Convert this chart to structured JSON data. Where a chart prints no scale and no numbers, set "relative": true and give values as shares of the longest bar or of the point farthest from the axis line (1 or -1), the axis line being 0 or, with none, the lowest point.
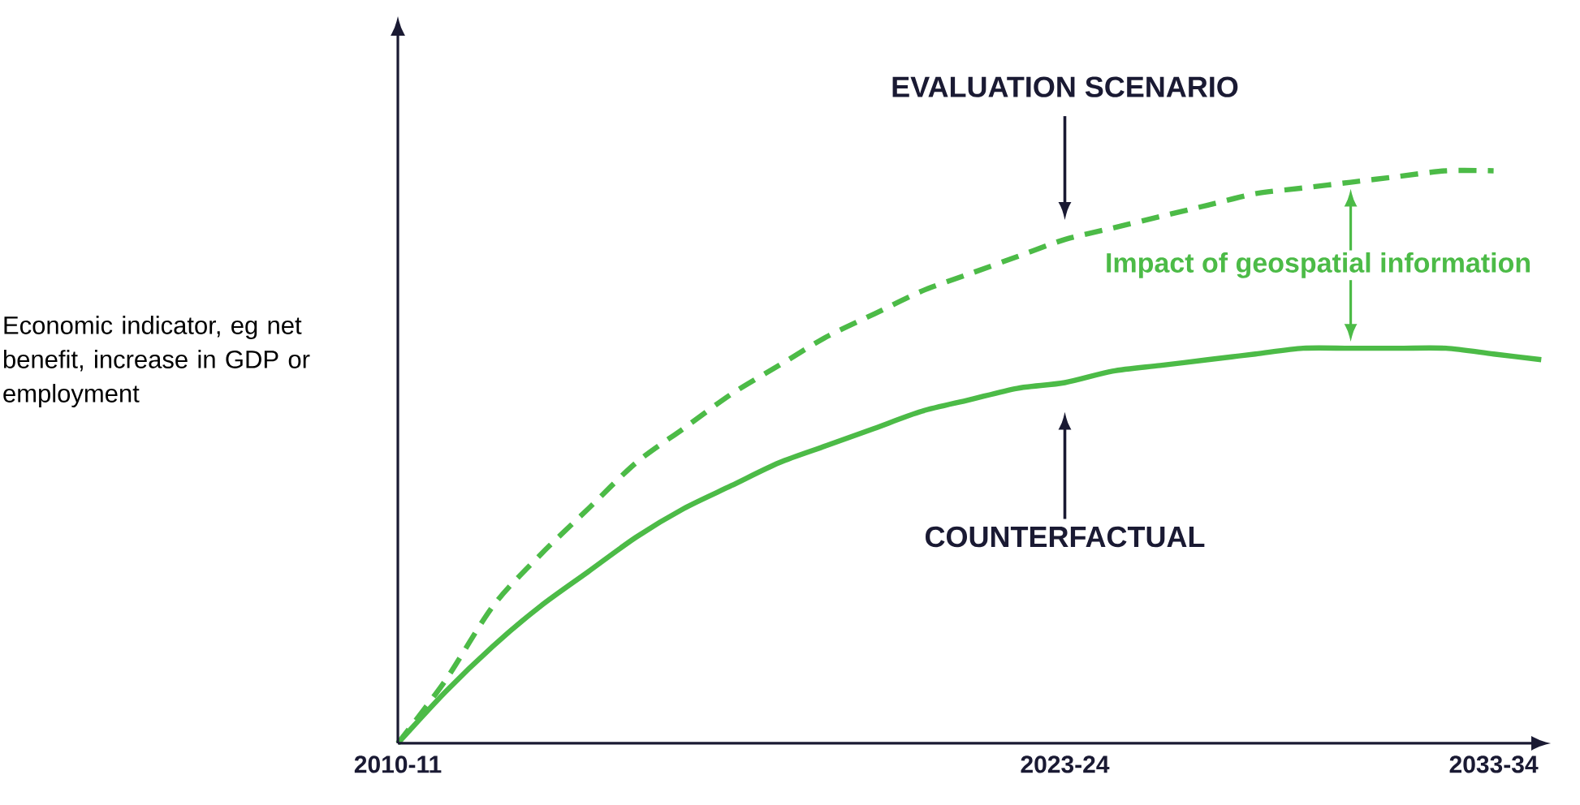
{
  "chart_data": {
    "type": "line",
    "relative": true,
    "ylabel": "Economic indicator, eg net benefit, increase in GDP or employment",
    "categories": [
      "2010-11",
      null,
      null,
      null,
      null,
      null,
      null,
      null,
      null,
      null,
      null,
      null,
      null,
      null,
      "2023-24",
      null,
      null,
      null,
      null,
      null,
      null,
      null,
      null,
      "2033-34",
      null
    ],
    "series": [
      {
        "values": [
          0,
          0.11,
          0.24,
          0.33,
          0.41,
          0.49,
          0.55,
          0.61,
          0.66,
          0.71,
          0.75,
          0.79,
          0.82,
          0.85,
          0.88,
          0.9,
          0.92,
          0.94,
          0.96,
          0.97,
          0.98,
          0.99,
          1.0,
          1.0,
          null
        ],
        "color": "#4cbb47",
        "line_style": "dashed"
      },
      {
        "values": [
          0,
          0.09,
          0.17,
          0.24,
          0.3,
          0.36,
          0.41,
          0.45,
          0.49,
          0.52,
          0.55,
          0.58,
          0.6,
          0.62,
          0.63,
          0.65,
          0.66,
          0.67,
          0.68,
          0.69,
          0.69,
          0.69,
          0.69,
          0.68,
          0.67
        ],
        "color": "#4cbb47",
        "line_style": "solid"
      }
    ],
    "annotations": [
      "EVALUATION SCENARIO",
      "COUNTERFACTUAL",
      "Impact of geospatial information"
    ]
  }
}
